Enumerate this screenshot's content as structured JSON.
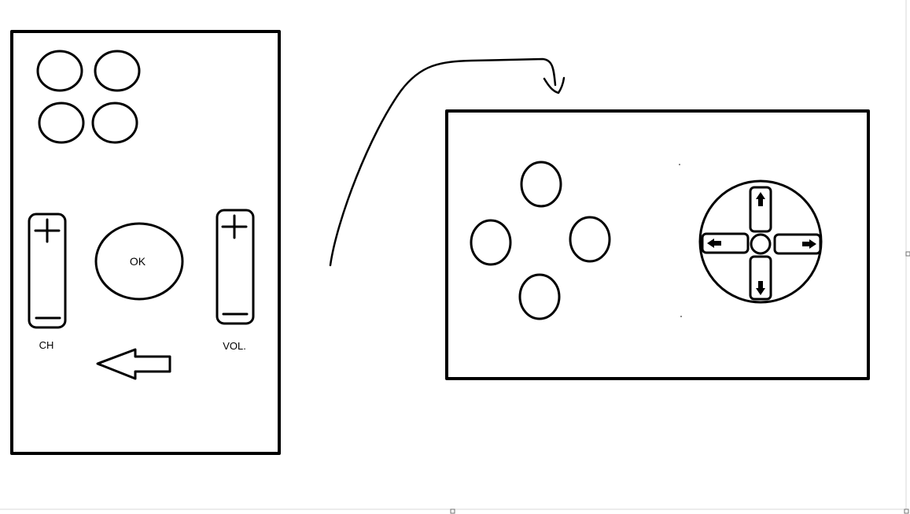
{
  "colors": {
    "ink": "#000000",
    "paper": "#ffffff",
    "page_edge": "#d9d9d9"
  },
  "remote": {
    "ok_label": "OK",
    "channel_label": "CH",
    "volume_label": "VOL.",
    "plus_glyph": "+",
    "minus_glyph": "—"
  },
  "icons": {
    "back": "left-arrow-icon",
    "transition": "curved-arrow-icon",
    "dpad": "dpad-icon"
  }
}
